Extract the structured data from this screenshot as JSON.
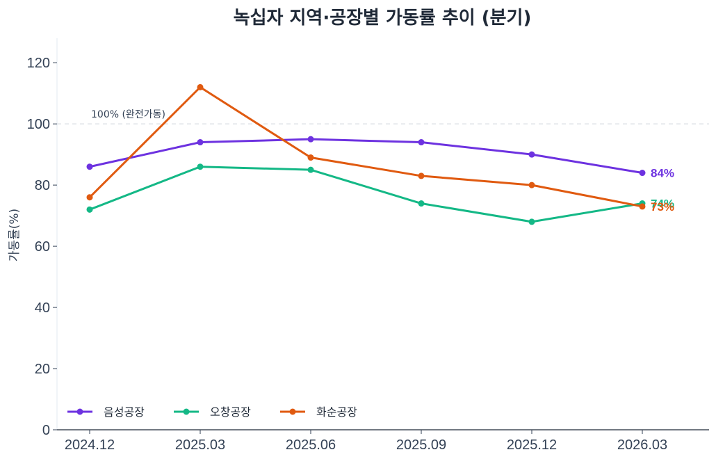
{
  "chart_data": {
    "type": "line",
    "title": "녹십자 지역·공장별 가동률 추이 (분기)",
    "xlabel": "",
    "ylabel": "가동률(%)",
    "categories": [
      "2024.12",
      "2025.03",
      "2025.06",
      "2025.09",
      "2025.12",
      "2026.03"
    ],
    "ylim": [
      0,
      128
    ],
    "yticks": [
      0,
      20,
      40,
      60,
      80,
      100,
      120
    ],
    "grid": false,
    "legend_position": "bottom-left",
    "reference_line": {
      "value": 100,
      "label": "100% (완전가동)"
    },
    "series": [
      {
        "name": "음성공장",
        "color": "#6d32e0",
        "values": [
          86,
          94,
          95,
          94,
          90,
          84
        ],
        "end_label": "84%"
      },
      {
        "name": "오창공장",
        "color": "#14b886",
        "values": [
          72,
          86,
          85,
          74,
          68,
          74
        ],
        "end_label": "74%"
      },
      {
        "name": "화순공장",
        "color": "#e05a10",
        "values": [
          76,
          112,
          89,
          83,
          80,
          73
        ],
        "end_label": "73%"
      }
    ]
  }
}
